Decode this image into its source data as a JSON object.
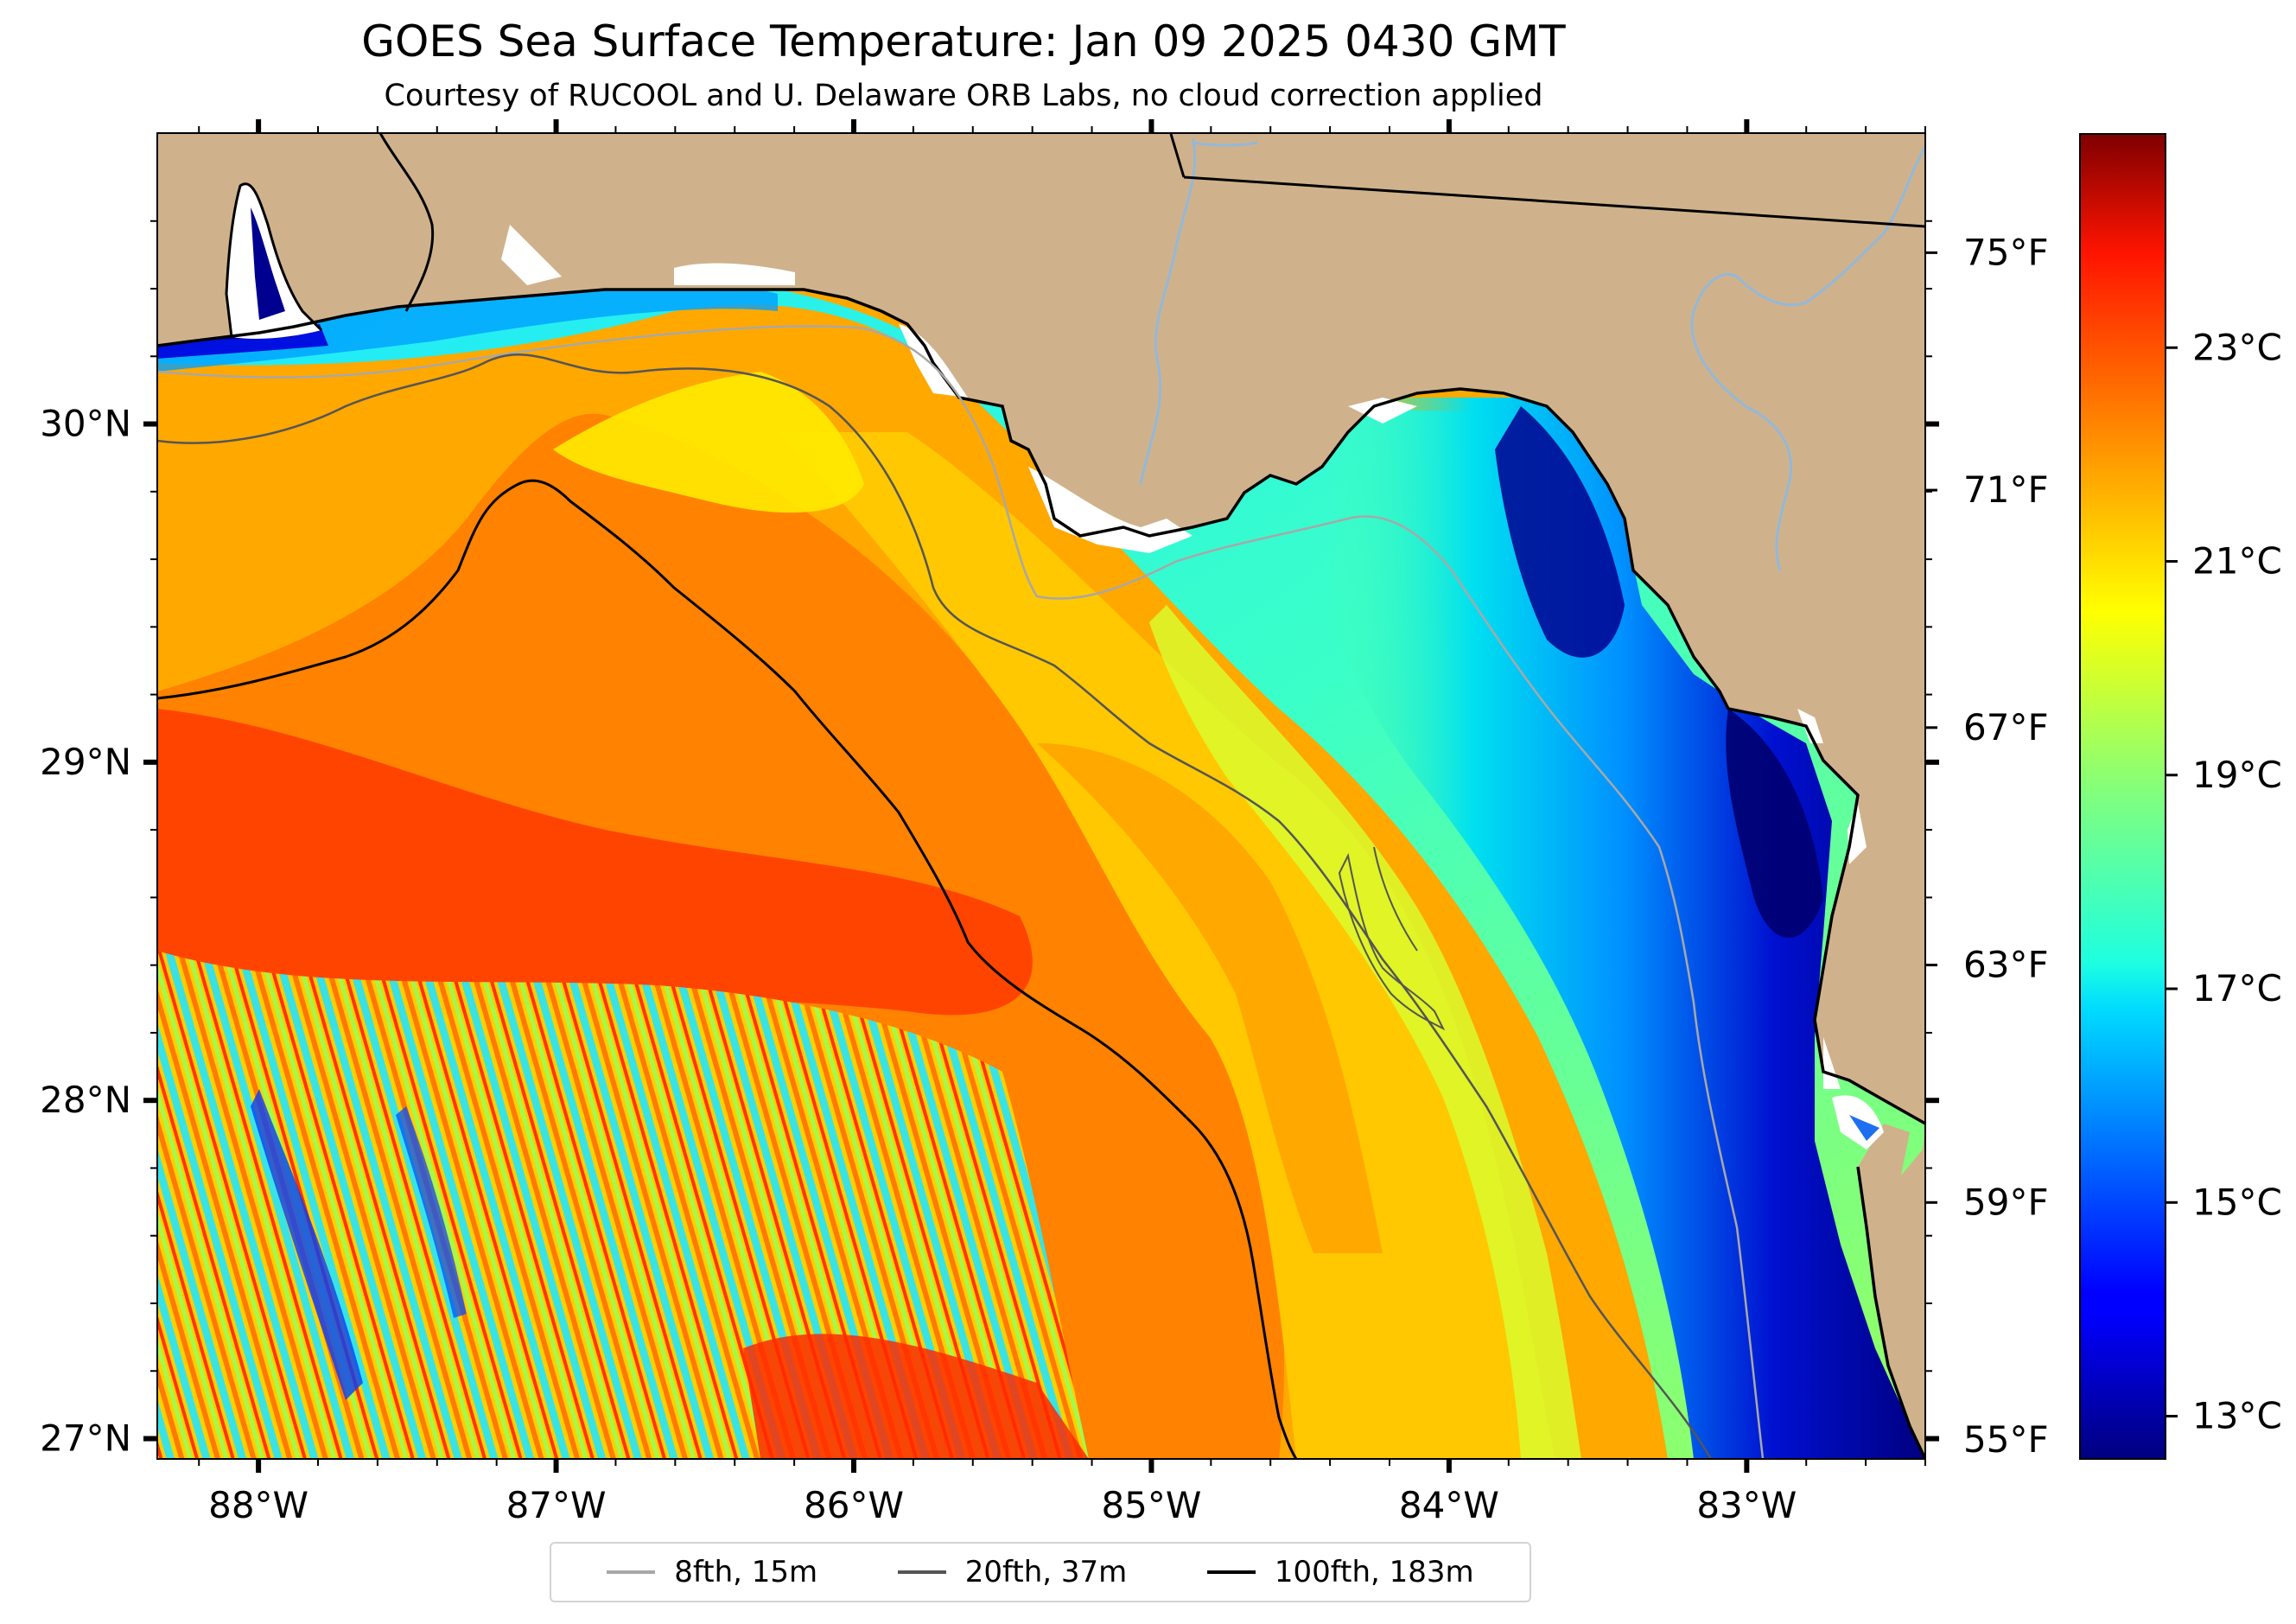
{
  "header": {
    "title": "GOES Sea Surface Temperature: Jan 09 2025 0430 GMT",
    "subtitle": "Courtesy of RUCOOL and U. Delaware ORB Labs, no cloud correction applied"
  },
  "map": {
    "lon_range": [
      -88.34,
      -82.4
    ],
    "lat_range": [
      26.94,
      30.86
    ],
    "lon_ticks": [
      {
        "value": -88,
        "label": "88°W"
      },
      {
        "value": -87,
        "label": "87°W"
      },
      {
        "value": -86,
        "label": "86°W"
      },
      {
        "value": -85,
        "label": "85°W"
      },
      {
        "value": -84,
        "label": "84°W"
      },
      {
        "value": -83,
        "label": "83°W"
      }
    ],
    "lat_ticks": [
      {
        "value": 30,
        "label": "30°N"
      },
      {
        "value": 29,
        "label": "29°N"
      },
      {
        "value": 28,
        "label": "28°N"
      },
      {
        "value": 27,
        "label": "27°N"
      }
    ],
    "fahrenheit_ticks": [
      {
        "value": 75,
        "label": "75°F"
      },
      {
        "value": 71,
        "label": "71°F"
      },
      {
        "value": 67,
        "label": "67°F"
      },
      {
        "value": 63,
        "label": "63°F"
      },
      {
        "value": 59,
        "label": "59°F"
      },
      {
        "value": 55,
        "label": "55°F"
      }
    ],
    "colors": {
      "land": "#cfb28c",
      "river": "#94b8d8",
      "no_data": "#ffffff"
    }
  },
  "colorbar": {
    "range_c": [
      12.6,
      25.0
    ],
    "colormap": "jet",
    "ticks": [
      {
        "value": 23,
        "label": "23°C"
      },
      {
        "value": 21,
        "label": "21°C"
      },
      {
        "value": 19,
        "label": "19°C"
      },
      {
        "value": 17,
        "label": "17°C"
      },
      {
        "value": 15,
        "label": "15°C"
      },
      {
        "value": 13,
        "label": "13°C"
      }
    ]
  },
  "legend": {
    "items": [
      {
        "label": "8fth, 15m",
        "color": "#a8a8a8"
      },
      {
        "label": "20fth, 37m",
        "color": "#555555"
      },
      {
        "label": "100fth, 183m",
        "color": "#000000"
      }
    ]
  }
}
